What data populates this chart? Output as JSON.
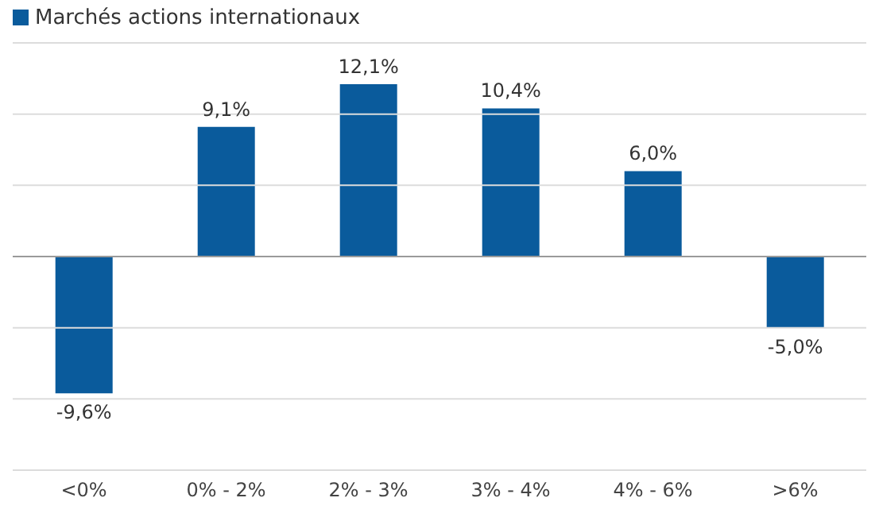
{
  "chart_data": {
    "type": "bar",
    "categories": [
      "<0%",
      "0% - 2%",
      "2% - 3%",
      "3% - 4%",
      "4% - 6%",
      ">6%"
    ],
    "series": [
      {
        "name": "Marchés actions internationaux",
        "color": "#0a5b9c",
        "values": [
          -9.6,
          9.1,
          12.1,
          10.4,
          6.0,
          -5.0
        ],
        "value_labels": [
          "-9,6%",
          "9,1%",
          "12,1%",
          "10,4%",
          "6,0%",
          "-5,0%"
        ]
      }
    ],
    "ylim": [
      -15,
      15
    ],
    "yticks": [
      {
        "value": -15,
        "label": null
      },
      {
        "value": -10,
        "label": null
      },
      {
        "value": -5,
        "label": null
      },
      {
        "value": 0,
        "label": null
      },
      {
        "value": 5,
        "label": null
      },
      {
        "value": 10,
        "label": null
      },
      {
        "value": 15,
        "label": null
      }
    ],
    "tick_labels": "x",
    "grid": "y",
    "legend": "top left",
    "ref_lines": [
      {
        "axis": "y",
        "value": 0,
        "color": "#9a9a9a"
      }
    ]
  }
}
